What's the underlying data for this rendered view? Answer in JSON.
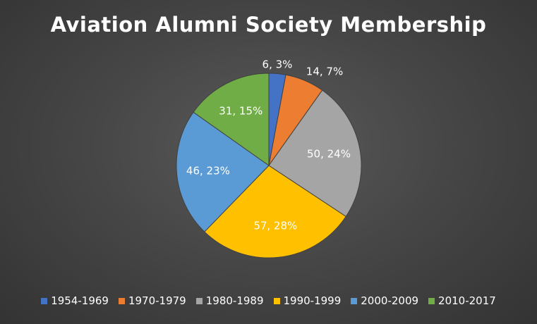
{
  "chart_data": {
    "type": "pie",
    "title": "Aviation Alumni Society Membership",
    "categories": [
      "1954-1969",
      "1970-1979",
      "1980-1989",
      "1990-1999",
      "2000-2009",
      "2010-2017"
    ],
    "values": [
      6,
      14,
      50,
      57,
      46,
      31
    ],
    "percent_labels": [
      "3%",
      "7%",
      "24%",
      "28%",
      "23%",
      "15%"
    ],
    "data_labels": [
      "6, 3%",
      "14, 7%",
      "50, 24%",
      "57, 28%",
      "46, 23%",
      "31, 15%"
    ],
    "colors": [
      "#4472c4",
      "#ed7d31",
      "#a5a5a5",
      "#ffc000",
      "#5b9bd5",
      "#70ad47"
    ],
    "legend_position": "bottom"
  }
}
